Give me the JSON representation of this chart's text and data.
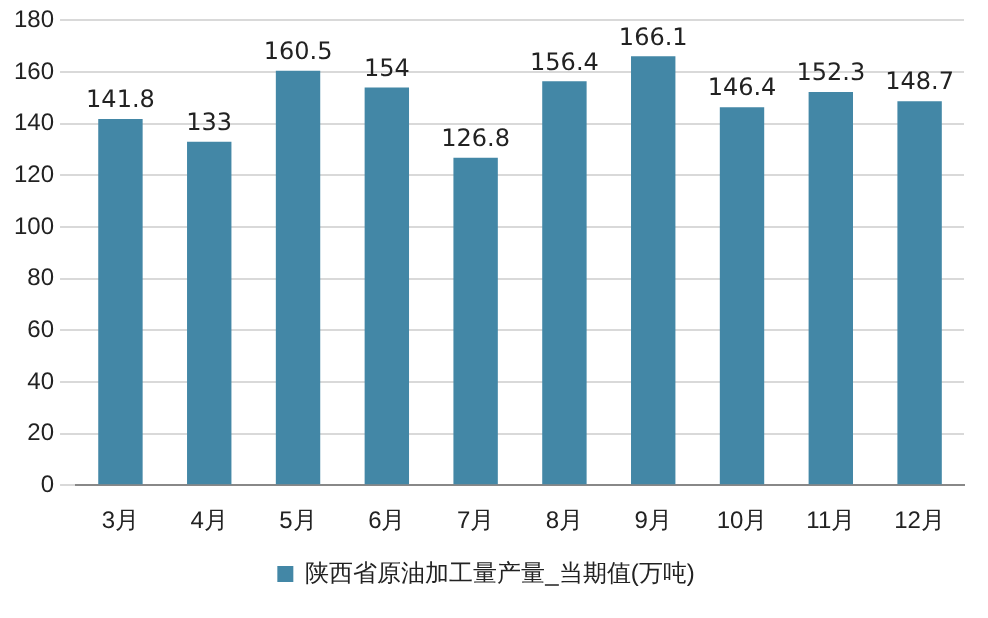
{
  "chart_data": {
    "type": "bar",
    "categories": [
      "3月",
      "4月",
      "5月",
      "6月",
      "7月",
      "8月",
      "9月",
      "10月",
      "11月",
      "12月"
    ],
    "series": [
      {
        "name": "陕西省原油加工量产量_当期值(万吨)",
        "color": "#4387a6",
        "values": [
          141.8,
          133,
          160.5,
          154,
          126.8,
          156.4,
          166.1,
          146.4,
          152.3,
          148.7
        ]
      }
    ],
    "ylim": [
      0,
      180
    ],
    "yticks": [
      0,
      20,
      40,
      60,
      80,
      100,
      120,
      140,
      160,
      180
    ],
    "grid": "y",
    "legend": "bottom",
    "data_labels": true
  }
}
